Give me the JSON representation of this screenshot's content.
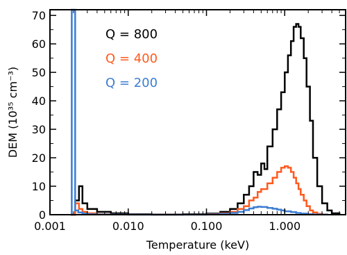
{
  "chart_data": {
    "type": "line",
    "xlabel": "Temperature (keV)",
    "ylabel": "DEM (10³⁵ cm⁻³)",
    "xscale": "log",
    "xlim": [
      0.001,
      6.0
    ],
    "ylim": [
      0,
      72
    ],
    "x_ticks": [
      0.001,
      0.01,
      0.1,
      1.0
    ],
    "x_tick_labels": [
      "0.001",
      "0.010",
      "0.100",
      "1.000"
    ],
    "y_ticks": [
      0,
      10,
      20,
      30,
      40,
      50,
      60,
      70
    ],
    "y_tick_labels": [
      "0",
      "10",
      "20",
      "30",
      "40",
      "50",
      "60",
      "70"
    ],
    "legend_placement": "top-left",
    "step_style": "histogram",
    "series": [
      {
        "name": "Q = 800",
        "color": "#000000",
        "x": [
          0.00185,
          0.0019,
          0.0021,
          0.00235,
          0.0026,
          0.003,
          0.004,
          0.006,
          0.01,
          0.02,
          0.05,
          0.1,
          0.15,
          0.2,
          0.25,
          0.3,
          0.35,
          0.4,
          0.45,
          0.5,
          0.55,
          0.6,
          0.7,
          0.8,
          0.9,
          1.0,
          1.1,
          1.2,
          1.3,
          1.4,
          1.5,
          1.6,
          1.75,
          1.9,
          2.1,
          2.3,
          2.6,
          3.0,
          3.5,
          4.0,
          5.0
        ],
        "y": [
          0,
          0,
          5,
          10,
          4,
          2,
          1,
          0.5,
          0.2,
          0.1,
          0.2,
          0.4,
          1,
          2,
          4,
          7,
          10,
          15,
          14,
          18,
          16,
          24,
          30,
          37,
          43,
          50,
          56,
          61,
          66,
          67,
          66,
          62,
          55,
          45,
          33,
          20,
          10,
          4,
          1.5,
          0.5,
          0
        ]
      },
      {
        "name": "Q = 400",
        "color": "#ff5a1e",
        "x": [
          0.00185,
          0.0019,
          0.0021,
          0.00235,
          0.0026,
          0.003,
          0.004,
          0.006,
          0.01,
          0.02,
          0.05,
          0.1,
          0.15,
          0.2,
          0.25,
          0.3,
          0.35,
          0.4,
          0.45,
          0.5,
          0.6,
          0.7,
          0.8,
          0.9,
          1.0,
          1.1,
          1.2,
          1.3,
          1.4,
          1.5,
          1.6,
          1.75,
          1.9,
          2.1,
          2.3,
          2.6,
          3.0,
          3.5
        ],
        "y": [
          0,
          0,
          4,
          2,
          1,
          0.5,
          0.2,
          0.1,
          0.05,
          0.02,
          0.05,
          0.2,
          0.5,
          1,
          2,
          3,
          5,
          6,
          8,
          9,
          11,
          13,
          15,
          16.5,
          17,
          16.5,
          15,
          13,
          11,
          9,
          7,
          5,
          3,
          1.5,
          0.8,
          0.3,
          0.1,
          0
        ]
      },
      {
        "name": "Q = 200",
        "color": "#3c7dd2",
        "x": [
          0.00185,
          0.0019,
          0.002,
          0.0021,
          0.0023,
          0.0026,
          0.003,
          0.004,
          0.006,
          0.01,
          0.02,
          0.05,
          0.1,
          0.15,
          0.2,
          0.25,
          0.3,
          0.35,
          0.4,
          0.45,
          0.5,
          0.6,
          0.7,
          0.8,
          0.9,
          1.0,
          1.2,
          1.4,
          1.6,
          1.9,
          2.3,
          2.8,
          3.5
        ],
        "y": [
          0,
          72,
          72,
          1.5,
          0.8,
          0.4,
          0.2,
          0.1,
          0.05,
          0.02,
          0.01,
          0.02,
          0.1,
          0.3,
          0.6,
          1,
          1.6,
          2.2,
          2.6,
          2.8,
          2.7,
          2.4,
          2.1,
          1.8,
          1.5,
          1.2,
          0.9,
          0.6,
          0.4,
          0.2,
          0.1,
          0.05,
          0
        ]
      }
    ]
  }
}
